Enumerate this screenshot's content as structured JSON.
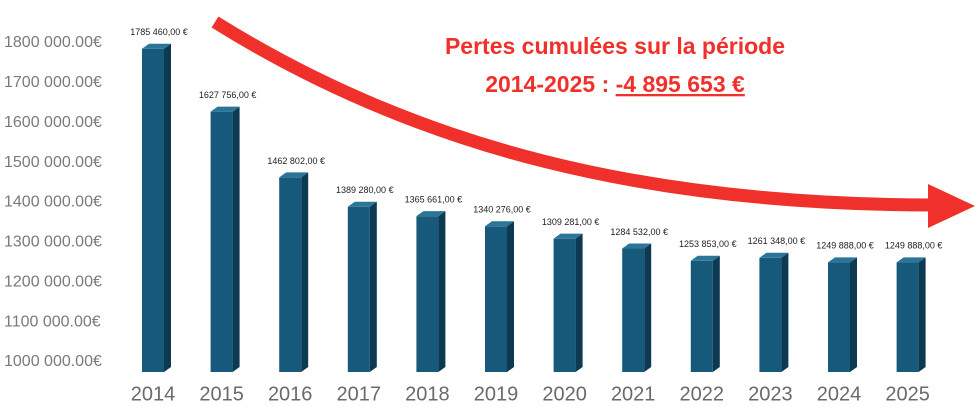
{
  "chart_data": {
    "type": "bar",
    "annotation": {
      "line1": "Pertes cumulées sur la période",
      "line2_prefix": "2014-2025 : ",
      "line2_value": "-4 895 653 €"
    },
    "categories": [
      "2014",
      "2015",
      "2016",
      "2017",
      "2018",
      "2019",
      "2020",
      "2021",
      "2022",
      "2023",
      "2024",
      "2025"
    ],
    "values": [
      1785460,
      1627756,
      1462802,
      1389280,
      1365661,
      1340276,
      1309281,
      1284532,
      1253853,
      1261348,
      1249888,
      1249888
    ],
    "value_labels": [
      "1785 460,00 €",
      "1627 756,00 €",
      "1462 802,00 €",
      "1389 280,00 €",
      "1365 661,00 €",
      "1340 276,00 €",
      "1309 281,00 €",
      "1284 532,00 €",
      "1253 853,00 €",
      "1261 348,00 €",
      "1249 888,00 €",
      "1249 888,00 €"
    ],
    "color": "#17597a",
    "ylim": [
      975000,
      1850000
    ],
    "yticks": [
      {
        "value": 1000000,
        "label": "1000 000.00€"
      },
      {
        "value": 1100000,
        "label": "1100 000.00€"
      },
      {
        "value": 1200000,
        "label": "1200 000.00€"
      },
      {
        "value": 1300000,
        "label": "1300 000.00€"
      },
      {
        "value": 1400000,
        "label": "1400 000.00€"
      },
      {
        "value": 1500000,
        "label": "1500 000.00€"
      },
      {
        "value": 1600000,
        "label": "1600 000.00€"
      },
      {
        "value": 1700000,
        "label": "1700 000.00€"
      },
      {
        "value": 1800000,
        "label": "1800 000.00€"
      }
    ],
    "grid": false
  }
}
